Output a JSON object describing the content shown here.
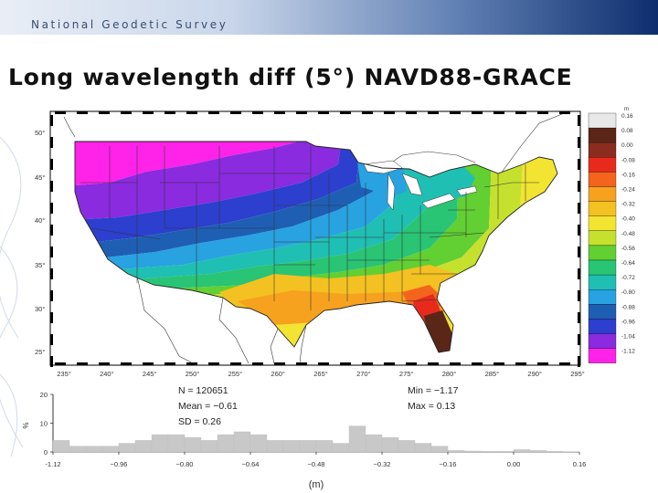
{
  "header": {
    "org_label": "National Geodetic Survey"
  },
  "slide": {
    "title": "Long wavelength diff (5°) NAVD88-GRACE"
  },
  "map": {
    "lon_ticks": [
      "235°",
      "240°",
      "245°",
      "250°",
      "255°",
      "260°",
      "265°",
      "270°",
      "275°",
      "280°",
      "285°",
      "290°",
      "295°"
    ],
    "lat_ticks": [
      "50°",
      "45°",
      "40°",
      "35°",
      "30°",
      "25°"
    ]
  },
  "colorbar": {
    "unit": "m",
    "labels": [
      "0.16",
      "0.08",
      "0.00",
      "-0.08",
      "-0.16",
      "-0.24",
      "-0.32",
      "-0.40",
      "-0.48",
      "-0.56",
      "-0.64",
      "-0.72",
      "-0.80",
      "-0.88",
      "-0.96",
      "-1.04",
      "-1.12"
    ],
    "colors": [
      "#e8e8e8",
      "#5a2618",
      "#8b2d1e",
      "#e82a1c",
      "#f4641c",
      "#f6a21e",
      "#f3c121",
      "#f2e430",
      "#c6e02e",
      "#62cf33",
      "#29c474",
      "#1fbfb4",
      "#28a2e0",
      "#1e5fb4",
      "#2c3fcf",
      "#8a2be0",
      "#ff22e8"
    ]
  },
  "stats": {
    "n": "N = 120651",
    "mean": "Mean = −0.61",
    "sd": "SD = 0.26",
    "min": "Min = −1.17",
    "max": "Max = 0.13"
  },
  "chart_data": {
    "type": "bar",
    "title": "",
    "xlabel": "(m)",
    "ylabel": "%",
    "xlim": [
      -1.12,
      0.16
    ],
    "ylim": [
      0,
      20
    ],
    "x_ticks": [
      "-1.12",
      "−0.96",
      "−0.80",
      "−0.64",
      "−0.48",
      "−0.32",
      "−0.16",
      "0.00",
      "0.16"
    ],
    "y_ticks": [
      "20",
      "10",
      "0"
    ],
    "bin_width": 0.04,
    "bin_starts": [
      -1.12,
      -1.08,
      -1.04,
      -1.0,
      -0.96,
      -0.92,
      -0.88,
      -0.84,
      -0.8,
      -0.76,
      -0.72,
      -0.68,
      -0.64,
      -0.6,
      -0.56,
      -0.52,
      -0.48,
      -0.44,
      -0.4,
      -0.36,
      -0.32,
      -0.28,
      -0.24,
      -0.2,
      -0.16,
      -0.12,
      -0.08,
      -0.04,
      0.0,
      0.04,
      0.08,
      0.12
    ],
    "values": [
      4,
      2,
      2,
      2,
      3,
      4,
      6,
      6,
      5,
      4,
      6,
      7,
      6,
      4,
      4,
      4,
      4,
      3,
      9,
      6,
      5,
      4,
      3,
      2,
      0.5,
      0.3,
      0.2,
      0.2,
      0.8,
      0.5,
      0.2,
      0.1
    ]
  }
}
